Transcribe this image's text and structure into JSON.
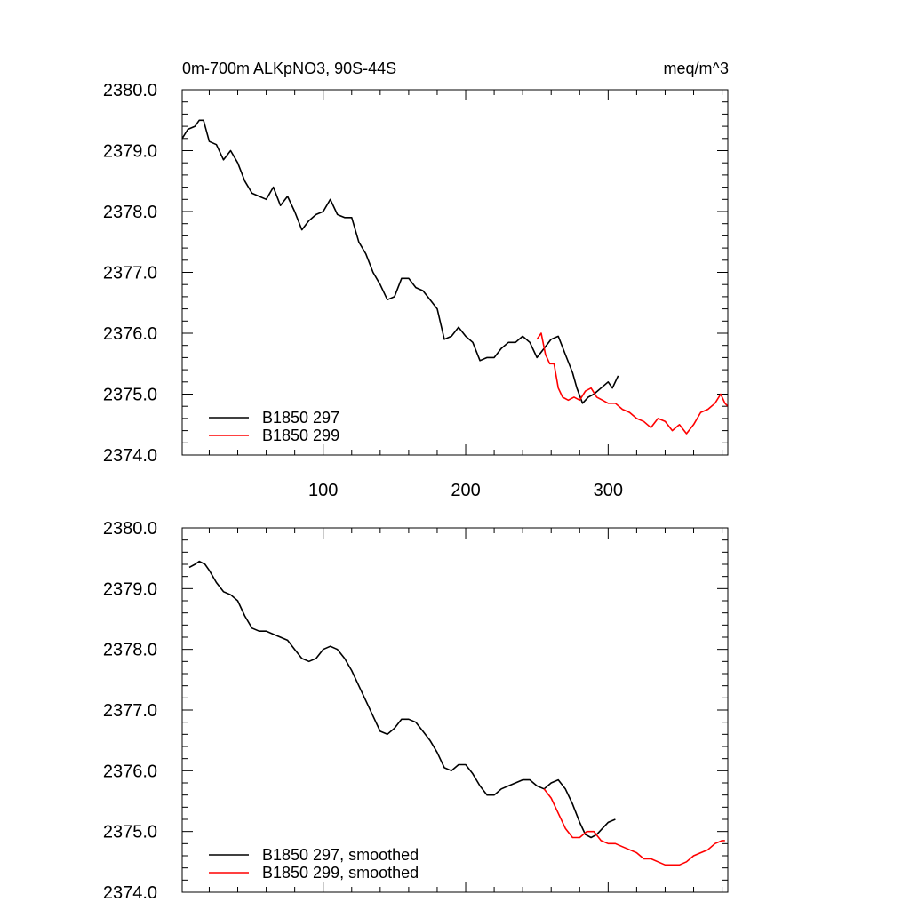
{
  "chart_data": [
    {
      "type": "line",
      "title": "0m-700m ALKpNO3, 90S-44S",
      "units": "meq/m^3",
      "xlim": [
        1,
        384
      ],
      "ylim": [
        2374.0,
        2380.0
      ],
      "xticks": [
        100,
        200,
        300
      ],
      "yticks": [
        2374.0,
        2375.0,
        2376.0,
        2377.0,
        2378.0,
        2379.0,
        2380.0
      ],
      "ytick_labels": [
        "2374.0",
        "2375.0",
        "2376.0",
        "2377.0",
        "2378.0",
        "2379.0",
        "2380.0"
      ],
      "xtick_labels": [
        "100",
        "200",
        "300"
      ],
      "legend_position": "bottom-left",
      "series": [
        {
          "name": "B1850 297",
          "color": "#000000",
          "points": [
            [
              1,
              2379.2
            ],
            [
              5,
              2379.35
            ],
            [
              10,
              2379.4
            ],
            [
              13,
              2379.5
            ],
            [
              16,
              2379.5
            ],
            [
              20,
              2379.15
            ],
            [
              25,
              2379.1
            ],
            [
              30,
              2378.85
            ],
            [
              35,
              2379.0
            ],
            [
              40,
              2378.8
            ],
            [
              45,
              2378.5
            ],
            [
              50,
              2378.3
            ],
            [
              55,
              2378.25
            ],
            [
              60,
              2378.2
            ],
            [
              65,
              2378.4
            ],
            [
              70,
              2378.1
            ],
            [
              75,
              2378.25
            ],
            [
              80,
              2378.0
            ],
            [
              85,
              2377.7
            ],
            [
              90,
              2377.85
            ],
            [
              95,
              2377.95
            ],
            [
              100,
              2378.0
            ],
            [
              105,
              2378.2
            ],
            [
              110,
              2377.95
            ],
            [
              115,
              2377.9
            ],
            [
              120,
              2377.9
            ],
            [
              125,
              2377.5
            ],
            [
              130,
              2377.3
            ],
            [
              135,
              2377.0
            ],
            [
              140,
              2376.8
            ],
            [
              145,
              2376.55
            ],
            [
              150,
              2376.6
            ],
            [
              155,
              2376.9
            ],
            [
              160,
              2376.9
            ],
            [
              165,
              2376.75
            ],
            [
              170,
              2376.7
            ],
            [
              175,
              2376.55
            ],
            [
              180,
              2376.4
            ],
            [
              185,
              2375.9
            ],
            [
              190,
              2375.95
            ],
            [
              195,
              2376.1
            ],
            [
              200,
              2375.95
            ],
            [
              205,
              2375.85
            ],
            [
              210,
              2375.55
            ],
            [
              215,
              2375.6
            ],
            [
              220,
              2375.6
            ],
            [
              225,
              2375.75
            ],
            [
              230,
              2375.85
            ],
            [
              235,
              2375.85
            ],
            [
              240,
              2375.95
            ],
            [
              245,
              2375.85
            ],
            [
              250,
              2375.6
            ],
            [
              255,
              2375.75
            ],
            [
              260,
              2375.9
            ],
            [
              265,
              2375.95
            ],
            [
              270,
              2375.65
            ],
            [
              275,
              2375.35
            ],
            [
              278,
              2375.1
            ],
            [
              282,
              2374.85
            ],
            [
              286,
              2374.95
            ],
            [
              290,
              2375.0
            ],
            [
              295,
              2375.1
            ],
            [
              300,
              2375.2
            ],
            [
              303,
              2375.1
            ],
            [
              307,
              2375.3
            ]
          ]
        },
        {
          "name": "B1850 299",
          "color": "#ff0000",
          "points": [
            [
              250,
              2375.9
            ],
            [
              253,
              2376.0
            ],
            [
              256,
              2375.65
            ],
            [
              259,
              2375.5
            ],
            [
              262,
              2375.5
            ],
            [
              265,
              2375.1
            ],
            [
              268,
              2374.95
            ],
            [
              272,
              2374.9
            ],
            [
              276,
              2374.95
            ],
            [
              280,
              2374.9
            ],
            [
              284,
              2375.05
            ],
            [
              288,
              2375.1
            ],
            [
              292,
              2374.95
            ],
            [
              296,
              2374.9
            ],
            [
              300,
              2374.85
            ],
            [
              305,
              2374.85
            ],
            [
              310,
              2374.75
            ],
            [
              315,
              2374.7
            ],
            [
              320,
              2374.6
            ],
            [
              325,
              2374.55
            ],
            [
              330,
              2374.45
            ],
            [
              335,
              2374.6
            ],
            [
              340,
              2374.55
            ],
            [
              345,
              2374.4
            ],
            [
              350,
              2374.5
            ],
            [
              355,
              2374.35
            ],
            [
              360,
              2374.5
            ],
            [
              365,
              2374.7
            ],
            [
              370,
              2374.75
            ],
            [
              375,
              2374.85
            ],
            [
              379,
              2375.0
            ],
            [
              382,
              2374.85
            ],
            [
              384,
              2374.8
            ]
          ]
        }
      ]
    },
    {
      "type": "line",
      "title": "",
      "xlim": [
        1,
        384
      ],
      "ylim": [
        2374.0,
        2380.0
      ],
      "xticks": [
        100,
        200,
        300
      ],
      "yticks": [
        2374.0,
        2375.0,
        2376.0,
        2377.0,
        2378.0,
        2379.0,
        2380.0
      ],
      "ytick_labels": [
        "2374.0",
        "2375.0",
        "2376.0",
        "2377.0",
        "2378.0",
        "2379.0",
        "2380.0"
      ],
      "legend_position": "bottom-left",
      "series": [
        {
          "name": "B1850 297, smoothed",
          "color": "#000000",
          "points": [
            [
              6,
              2379.35
            ],
            [
              10,
              2379.4
            ],
            [
              13,
              2379.45
            ],
            [
              17,
              2379.4
            ],
            [
              20,
              2379.3
            ],
            [
              25,
              2379.1
            ],
            [
              30,
              2378.95
            ],
            [
              35,
              2378.9
            ],
            [
              40,
              2378.8
            ],
            [
              45,
              2378.55
            ],
            [
              50,
              2378.35
            ],
            [
              55,
              2378.3
            ],
            [
              60,
              2378.3
            ],
            [
              65,
              2378.25
            ],
            [
              70,
              2378.2
            ],
            [
              75,
              2378.15
            ],
            [
              80,
              2378.0
            ],
            [
              85,
              2377.85
            ],
            [
              90,
              2377.8
            ],
            [
              95,
              2377.85
            ],
            [
              100,
              2378.0
            ],
            [
              105,
              2378.05
            ],
            [
              110,
              2378.0
            ],
            [
              115,
              2377.85
            ],
            [
              120,
              2377.65
            ],
            [
              125,
              2377.4
            ],
            [
              130,
              2377.15
            ],
            [
              135,
              2376.9
            ],
            [
              140,
              2376.65
            ],
            [
              145,
              2376.6
            ],
            [
              150,
              2376.7
            ],
            [
              155,
              2376.85
            ],
            [
              160,
              2376.85
            ],
            [
              165,
              2376.8
            ],
            [
              170,
              2376.65
            ],
            [
              175,
              2376.5
            ],
            [
              180,
              2376.3
            ],
            [
              185,
              2376.05
            ],
            [
              190,
              2376.0
            ],
            [
              195,
              2376.1
            ],
            [
              200,
              2376.1
            ],
            [
              205,
              2375.95
            ],
            [
              210,
              2375.75
            ],
            [
              215,
              2375.6
            ],
            [
              220,
              2375.6
            ],
            [
              225,
              2375.7
            ],
            [
              230,
              2375.75
            ],
            [
              235,
              2375.8
            ],
            [
              240,
              2375.85
            ],
            [
              245,
              2375.85
            ],
            [
              250,
              2375.75
            ],
            [
              255,
              2375.7
            ],
            [
              260,
              2375.8
            ],
            [
              265,
              2375.85
            ],
            [
              270,
              2375.7
            ],
            [
              275,
              2375.45
            ],
            [
              280,
              2375.15
            ],
            [
              284,
              2374.95
            ],
            [
              288,
              2374.9
            ],
            [
              292,
              2374.95
            ],
            [
              296,
              2375.05
            ],
            [
              300,
              2375.15
            ],
            [
              305,
              2375.2
            ]
          ]
        },
        {
          "name": "B1850 299, smoothed",
          "color": "#ff0000",
          "points": [
            [
              255,
              2375.7
            ],
            [
              260,
              2375.55
            ],
            [
              265,
              2375.3
            ],
            [
              270,
              2375.05
            ],
            [
              275,
              2374.9
            ],
            [
              280,
              2374.9
            ],
            [
              285,
              2375.0
            ],
            [
              290,
              2375.0
            ],
            [
              295,
              2374.85
            ],
            [
              300,
              2374.8
            ],
            [
              305,
              2374.8
            ],
            [
              310,
              2374.75
            ],
            [
              315,
              2374.7
            ],
            [
              320,
              2374.65
            ],
            [
              325,
              2374.55
            ],
            [
              330,
              2374.55
            ],
            [
              335,
              2374.5
            ],
            [
              340,
              2374.45
            ],
            [
              345,
              2374.45
            ],
            [
              350,
              2374.45
            ],
            [
              355,
              2374.5
            ],
            [
              360,
              2374.6
            ],
            [
              365,
              2374.65
            ],
            [
              370,
              2374.7
            ],
            [
              375,
              2374.8
            ],
            [
              380,
              2374.85
            ],
            [
              382,
              2374.85
            ]
          ]
        }
      ]
    }
  ]
}
